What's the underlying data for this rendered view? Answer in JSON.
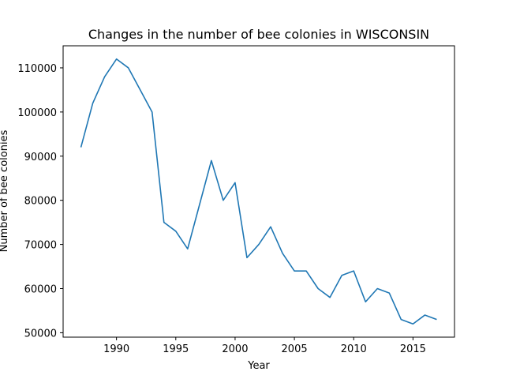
{
  "chart_data": {
    "type": "line",
    "title": "Changes in the number of bee colonies in WISCONSIN",
    "xlabel": "Year",
    "ylabel": "Number of bee colonies",
    "xlim": [
      1985.5,
      2018.5
    ],
    "ylim": [
      49000,
      115000
    ],
    "xticks": [
      1990,
      1995,
      2000,
      2005,
      2010,
      2015
    ],
    "yticks": [
      50000,
      60000,
      70000,
      80000,
      90000,
      100000,
      110000
    ],
    "grid": false,
    "series": [
      {
        "color": "#1f77b4",
        "x": [
          1987,
          1988,
          1989,
          1990,
          1991,
          1992,
          1993,
          1994,
          1995,
          1996,
          1997,
          1998,
          1999,
          2000,
          2001,
          2002,
          2003,
          2004,
          2005,
          2006,
          2007,
          2008,
          2009,
          2010,
          2011,
          2012,
          2013,
          2014,
          2015,
          2016,
          2017
        ],
        "y": [
          92000,
          102000,
          108000,
          112000,
          110000,
          105000,
          100000,
          75000,
          73000,
          69000,
          79000,
          89000,
          80000,
          84000,
          67000,
          70000,
          74000,
          68000,
          64000,
          64000,
          60000,
          58000,
          63000,
          64000,
          57000,
          60000,
          59000,
          53000,
          52000,
          54000,
          53000
        ]
      }
    ]
  }
}
